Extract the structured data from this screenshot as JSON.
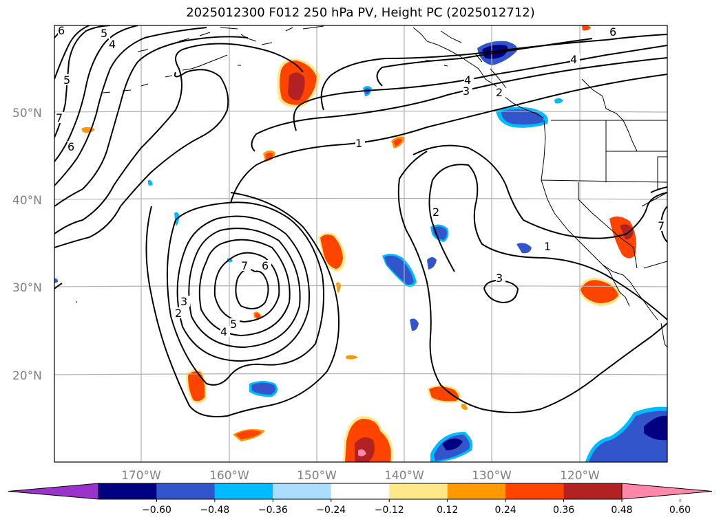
{
  "title": "2025012300 F012 250 hPa PV, Height PC (2025012712)",
  "map": {
    "projection": "Lambert conformal",
    "region": "North Pacific / western North America",
    "lat_labels": [
      "50°N",
      "40°N",
      "30°N",
      "20°N"
    ],
    "lon_labels": [
      "170°W",
      "160°W",
      "150°W",
      "140°W",
      "130°W",
      "120°W"
    ],
    "gridlines": true
  },
  "height_pc_contours": {
    "color": "#000000",
    "labels": [
      "6",
      "5",
      "4",
      "5",
      "6",
      "7",
      "4",
      "3",
      "1",
      "2",
      "7",
      "6",
      "5",
      "4",
      "3",
      "2",
      "2",
      "1",
      "3",
      "7",
      "6",
      "4"
    ]
  },
  "colorbar": {
    "orientation": "horizontal",
    "extend": "both",
    "tick_labels": [
      "−0.60",
      "−0.48",
      "−0.36",
      "−0.24",
      "−0.12",
      "0.12",
      "0.24",
      "0.36",
      "0.48",
      "0.60"
    ],
    "colors": [
      "#9933cc",
      "#000080",
      "#3355cc",
      "#00bbff",
      "#aaddff",
      "#ffffff",
      "#ffe88a",
      "#ff9900",
      "#ff4400",
      "#b22222",
      "#ff88aa"
    ]
  }
}
